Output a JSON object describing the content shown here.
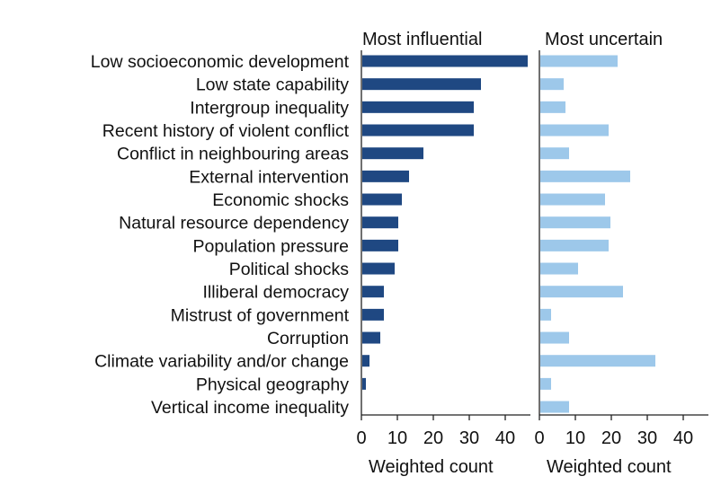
{
  "chart_data": {
    "type": "bar",
    "orientation": "horizontal",
    "categories": [
      "Low socioeconomic development",
      "Low state capability",
      "Intergroup inequality",
      "Recent history of violent conflict",
      "Conflict in neighbouring areas",
      "External intervention",
      "Economic shocks",
      "Natural resource dependency",
      "Population pressure",
      "Political shocks",
      "Illiberal democracy",
      "Mistrust of government",
      "Corruption",
      "Climate variability and/or change",
      "Physical geography",
      "Vertical income inequality"
    ],
    "panels": [
      {
        "title": "Most influential",
        "xlabel": "Weighted count",
        "xlim": [
          0,
          47
        ],
        "xticks": [
          0,
          10,
          20,
          30,
          40
        ],
        "color": "#1f4882",
        "values": [
          46,
          33,
          31,
          31,
          17,
          13,
          11,
          10,
          10,
          9,
          6,
          6,
          5,
          2,
          1,
          0
        ]
      },
      {
        "title": "Most uncertain",
        "xlabel": "Weighted count",
        "xlim": [
          0,
          47
        ],
        "xticks": [
          0,
          10,
          20,
          30,
          40
        ],
        "color": "#9dc8ea",
        "values": [
          21.5,
          6.5,
          7,
          19,
          8,
          25,
          18,
          19.5,
          19,
          10.5,
          23,
          3,
          8,
          32,
          3,
          8
        ]
      }
    ],
    "grid": false,
    "legend": "none"
  }
}
